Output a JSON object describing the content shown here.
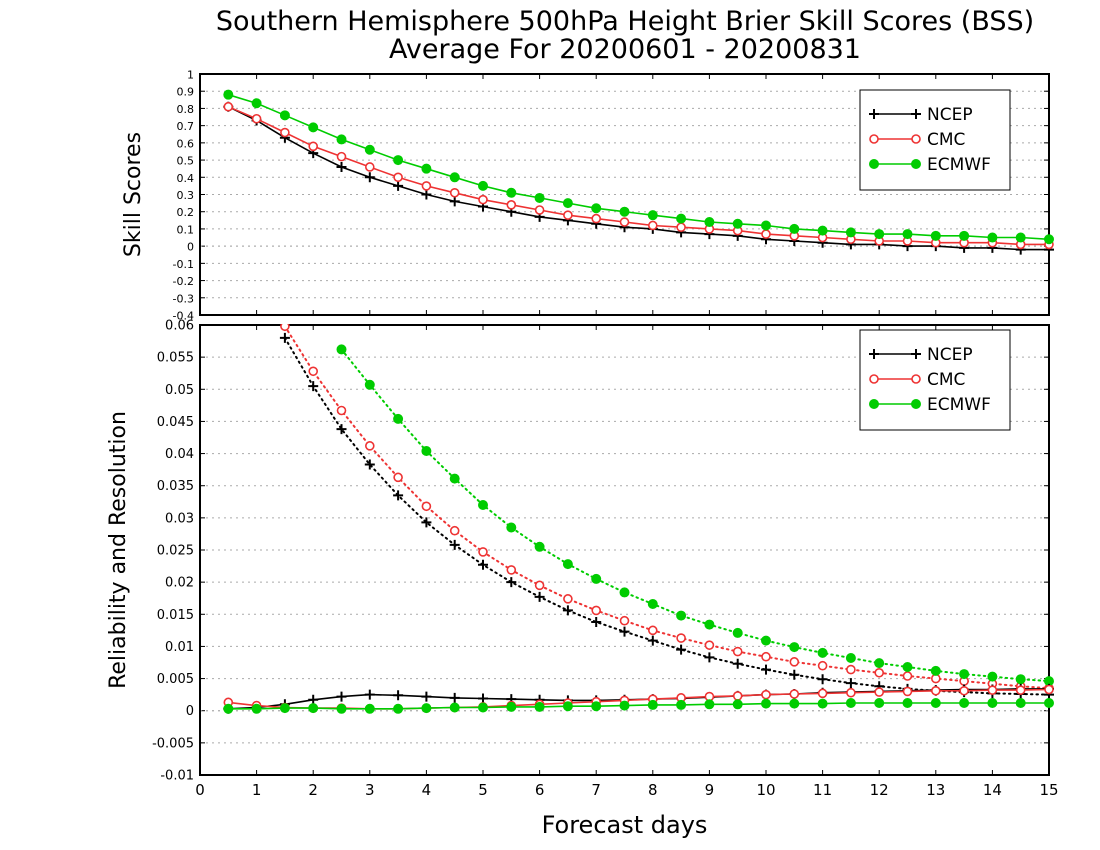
{
  "title": {
    "line1": "Southern Hemisphere 500hPa Height Brier Skill Scores (BSS)",
    "line2": "Average For 20200601 - 20200831"
  },
  "colors": {
    "NCEP": "#000000",
    "CMC": "#ee3333",
    "ECMWF": "#00cc00"
  },
  "chart_data": [
    {
      "type": "line",
      "ylabel": "Skill Scores",
      "xlim": [
        0,
        15
      ],
      "ylim": [
        -0.4,
        1
      ],
      "yticks": [
        "1",
        "0.9",
        "0.8",
        "0.7",
        "0.6",
        "0.5",
        "0.4",
        "0.3",
        "0.2",
        "0.1",
        "0",
        "-0.1",
        "-0.2",
        "-0.3",
        "-0.4"
      ],
      "grid": true,
      "legend_position": "top-right",
      "x": [
        0.5,
        1,
        1.5,
        2,
        2.5,
        3,
        3.5,
        4,
        4.5,
        5,
        5.5,
        6,
        6.5,
        7,
        7.5,
        8,
        8.5,
        9,
        9.5,
        10,
        10.5,
        11,
        11.5,
        12,
        12.5,
        13,
        13.5,
        14,
        14.5,
        15
      ],
      "series": [
        {
          "name": "NCEP",
          "marker": "plus",
          "values": [
            0.81,
            0.73,
            0.63,
            0.54,
            0.46,
            0.4,
            0.35,
            0.3,
            0.26,
            0.23,
            0.2,
            0.17,
            0.15,
            0.13,
            0.11,
            0.1,
            0.08,
            0.07,
            0.06,
            0.04,
            0.03,
            0.02,
            0.01,
            0.01,
            0.0,
            0.0,
            -0.01,
            -0.01,
            -0.02,
            -0.02
          ]
        },
        {
          "name": "CMC",
          "marker": "open-circle",
          "values": [
            0.81,
            0.74,
            0.66,
            0.58,
            0.52,
            0.46,
            0.4,
            0.35,
            0.31,
            0.27,
            0.24,
            0.21,
            0.18,
            0.16,
            0.14,
            0.12,
            0.11,
            0.1,
            0.09,
            0.07,
            0.06,
            0.05,
            0.04,
            0.03,
            0.03,
            0.02,
            0.02,
            0.02,
            0.01,
            0.01
          ]
        },
        {
          "name": "ECMWF",
          "marker": "filled-circle",
          "values": [
            0.88,
            0.83,
            0.76,
            0.69,
            0.62,
            0.56,
            0.5,
            0.45,
            0.4,
            0.35,
            0.31,
            0.28,
            0.25,
            0.22,
            0.2,
            0.18,
            0.16,
            0.14,
            0.13,
            0.12,
            0.1,
            0.09,
            0.08,
            0.07,
            0.07,
            0.06,
            0.06,
            0.05,
            0.05,
            0.04
          ]
        }
      ]
    },
    {
      "type": "line",
      "ylabel": "Reliability and Resolution",
      "xlabel": "Forecast days",
      "xlim": [
        0,
        15
      ],
      "ylim": [
        -0.01,
        0.06
      ],
      "xticks": [
        "0",
        "1",
        "2",
        "3",
        "4",
        "5",
        "6",
        "7",
        "8",
        "9",
        "10",
        "11",
        "12",
        "13",
        "14",
        "15"
      ],
      "yticks": [
        "0.06",
        "0.055",
        "0.05",
        "0.045",
        "0.04",
        "0.035",
        "0.03",
        "0.025",
        "0.02",
        "0.015",
        "0.01",
        "0.005",
        "0",
        "-0.005",
        "-0.01"
      ],
      "grid": true,
      "legend_position": "top-right",
      "x": [
        0.5,
        1,
        1.5,
        2,
        2.5,
        3,
        3.5,
        4,
        4.5,
        5,
        5.5,
        6,
        6.5,
        7,
        7.5,
        8,
        8.5,
        9,
        9.5,
        10,
        10.5,
        11,
        11.5,
        12,
        12.5,
        13,
        13.5,
        14,
        14.5,
        15
      ],
      "resolution_series": [
        {
          "name": "NCEP",
          "marker": "plus",
          "style": "dotted",
          "values": [
            null,
            null,
            0.058,
            0.0505,
            0.0438,
            0.0383,
            0.0335,
            0.0293,
            0.0258,
            0.0227,
            0.02,
            0.0177,
            0.0156,
            0.0138,
            0.0123,
            0.0109,
            0.0095,
            0.0083,
            0.0073,
            0.0064,
            0.0056,
            0.0049,
            0.0043,
            0.0038,
            0.0034,
            0.0031,
            0.0029,
            0.0027,
            0.0026,
            0.0025
          ]
        },
        {
          "name": "CMC",
          "marker": "open-circle",
          "style": "dotted",
          "values": [
            null,
            null,
            0.0598,
            0.0528,
            0.0467,
            0.0412,
            0.0363,
            0.0318,
            0.028,
            0.0247,
            0.0219,
            0.0195,
            0.0174,
            0.0156,
            0.014,
            0.0125,
            0.0113,
            0.0102,
            0.0092,
            0.0084,
            0.0076,
            0.007,
            0.0064,
            0.0059,
            0.0054,
            0.005,
            0.0046,
            0.0042,
            0.0038,
            0.0035
          ]
        },
        {
          "name": "ECMWF",
          "marker": "filled-circle",
          "style": "dotted",
          "values": [
            null,
            null,
            null,
            null,
            0.0562,
            0.0507,
            0.0454,
            0.0404,
            0.0361,
            0.032,
            0.0285,
            0.0255,
            0.0228,
            0.0205,
            0.0184,
            0.0166,
            0.0148,
            0.0134,
            0.0121,
            0.0109,
            0.0099,
            0.009,
            0.0082,
            0.0074,
            0.0068,
            0.0062,
            0.0057,
            0.0053,
            0.0049,
            0.0046
          ]
        }
      ],
      "reliability_series": [
        {
          "name": "NCEP",
          "marker": "plus",
          "style": "solid",
          "values": [
            0.0003,
            0.0005,
            0.001,
            0.0017,
            0.0022,
            0.0025,
            0.0024,
            0.0022,
            0.002,
            0.0019,
            0.0018,
            0.0017,
            0.0016,
            0.0016,
            0.0017,
            0.0018,
            0.0019,
            0.0021,
            0.0023,
            0.0025,
            0.0026,
            0.0028,
            0.0029,
            0.003,
            0.0031,
            0.0032,
            0.0033,
            0.0033,
            0.0034,
            0.0034
          ]
        },
        {
          "name": "CMC",
          "marker": "open-circle",
          "style": "solid",
          "values": [
            0.0013,
            0.0008,
            0.0005,
            0.0004,
            0.0004,
            0.0003,
            0.0003,
            0.0004,
            0.0005,
            0.0006,
            0.0008,
            0.001,
            0.0012,
            0.0014,
            0.0016,
            0.0018,
            0.002,
            0.0022,
            0.0023,
            0.0025,
            0.0026,
            0.0027,
            0.0028,
            0.0029,
            0.003,
            0.0031,
            0.0031,
            0.0032,
            0.0032,
            0.0033
          ]
        },
        {
          "name": "ECMWF",
          "marker": "filled-circle",
          "style": "solid",
          "values": [
            0.0003,
            0.0003,
            0.0004,
            0.0004,
            0.0003,
            0.0003,
            0.0003,
            0.0004,
            0.0005,
            0.0005,
            0.0006,
            0.0006,
            0.0007,
            0.0007,
            0.0008,
            0.0009,
            0.0009,
            0.001,
            0.001,
            0.0011,
            0.0011,
            0.0011,
            0.0012,
            0.0012,
            0.0012,
            0.0012,
            0.0012,
            0.0012,
            0.0012,
            0.0012
          ]
        }
      ]
    }
  ]
}
